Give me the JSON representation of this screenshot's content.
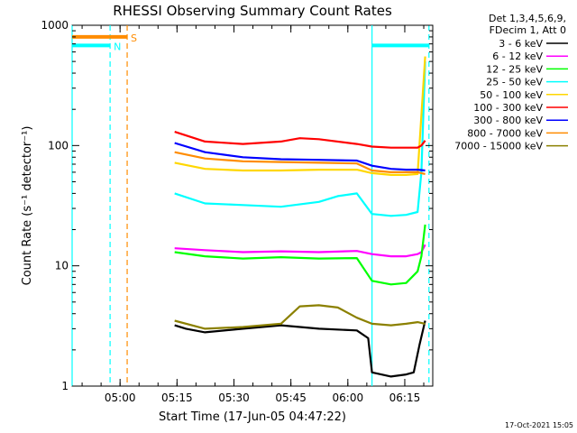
{
  "chart_data": {
    "type": "line",
    "title": "RHESSI Observing Summary Count Rates",
    "ylabel": "Count Rate (s⁻¹ detector⁻¹)",
    "xlabel": "Start Time (17-Jun-05 04:47:22)",
    "yscale": "log",
    "ylim": [
      1,
      1000
    ],
    "xlim_minutes": [
      0,
      95
    ],
    "y_ticks": [
      {
        "value": 1,
        "label": "1"
      },
      {
        "value": 10,
        "label": "10"
      },
      {
        "value": 100,
        "label": "100"
      },
      {
        "value": 1000,
        "label": "1000"
      }
    ],
    "x_ticks": [
      {
        "min": 12.63,
        "label": "05:00"
      },
      {
        "min": 27.63,
        "label": "05:15"
      },
      {
        "min": 42.63,
        "label": "05:30"
      },
      {
        "min": 57.63,
        "label": "05:45"
      },
      {
        "min": 72.63,
        "label": "06:00"
      },
      {
        "min": 87.63,
        "label": "06:15"
      }
    ],
    "legend_header": [
      "Det 1,3,4,5,6,9,",
      "FDecim 1, Att 0"
    ],
    "series": [
      {
        "name": "3 - 6 keV",
        "color": "#000000",
        "x": [
          27,
          30,
          35,
          45,
          55,
          65,
          75,
          78,
          79,
          84,
          88,
          90,
          91.5,
          93
        ],
        "y": [
          3.2,
          3.0,
          2.8,
          3.0,
          3.2,
          3.0,
          2.9,
          2.5,
          1.3,
          1.2,
          1.25,
          1.3,
          2.2,
          3.5
        ]
      },
      {
        "name": "6 - 12 keV",
        "color": "#ff00ff",
        "x": [
          27,
          35,
          45,
          55,
          65,
          75,
          79,
          84,
          88,
          91,
          92,
          93
        ],
        "y": [
          14,
          13.5,
          13,
          13.2,
          13,
          13.3,
          12.5,
          12,
          12,
          12.5,
          13,
          15
        ]
      },
      {
        "name": "12 - 25 keV",
        "color": "#00ff00",
        "x": [
          27,
          35,
          45,
          55,
          65,
          75,
          79,
          84,
          88,
          91,
          92,
          93
        ],
        "y": [
          13,
          12,
          11.5,
          11.8,
          11.5,
          11.6,
          7.5,
          7,
          7.2,
          9,
          12,
          22
        ]
      },
      {
        "name": "25 - 50 keV",
        "color": "#00ffff",
        "x": [
          27,
          35,
          45,
          55,
          65,
          70,
          75,
          79,
          84,
          88,
          91,
          92,
          93
        ],
        "y": [
          40,
          33,
          32,
          31,
          34,
          38,
          40,
          27,
          26,
          26.5,
          28,
          60,
          500
        ]
      },
      {
        "name": "50 - 100 keV",
        "color": "#ffd700",
        "x": [
          27,
          35,
          45,
          55,
          65,
          75,
          79,
          84,
          88,
          91,
          93
        ],
        "y": [
          72,
          64,
          62,
          62,
          63,
          63,
          59,
          57,
          57,
          58,
          550
        ]
      },
      {
        "name": "100 - 300 keV",
        "color": "#ff0000",
        "x": [
          27,
          35,
          45,
          55,
          60,
          65,
          75,
          79,
          84,
          88,
          91,
          92,
          93
        ],
        "y": [
          130,
          108,
          103,
          108,
          115,
          113,
          103,
          98,
          96,
          96,
          96,
          100,
          110
        ]
      },
      {
        "name": "300 - 800 keV",
        "color": "#0000ff",
        "x": [
          27,
          35,
          45,
          55,
          65,
          75,
          79,
          84,
          88,
          91,
          93
        ],
        "y": [
          105,
          88,
          80,
          77,
          76,
          75,
          68,
          64,
          63,
          63,
          62
        ]
      },
      {
        "name": "800 - 7000 keV",
        "color": "#ff8c00",
        "x": [
          27,
          35,
          45,
          55,
          65,
          75,
          79,
          84,
          88,
          91,
          93
        ],
        "y": [
          88,
          78,
          74,
          73,
          72,
          71,
          62,
          60,
          60,
          60,
          58
        ]
      },
      {
        "name": "7000 - 15000 keV",
        "color": "#8b8000",
        "x": [
          27,
          35,
          45,
          55,
          60,
          65,
          70,
          75,
          79,
          84,
          88,
          91,
          93
        ],
        "y": [
          3.5,
          3.0,
          3.1,
          3.3,
          4.6,
          4.7,
          4.5,
          3.7,
          3.3,
          3.2,
          3.3,
          3.4,
          3.3
        ]
      }
    ],
    "attenuator_lines": [
      {
        "label": "N",
        "color": "#00ffff",
        "x": [
          0,
          10
        ],
        "y": 680
      },
      {
        "label": "S",
        "color": "#ff8c00",
        "x": [
          0,
          14.5
        ],
        "y": 800
      },
      {
        "label": "",
        "color": "#00ffff",
        "x": [
          79,
          94
        ],
        "y": 680
      }
    ],
    "vlines": [
      {
        "color": "#00ffff",
        "x": 0,
        "style": "solid"
      },
      {
        "color": "#00ffff",
        "x": 10,
        "style": "dashed"
      },
      {
        "color": "#ff8c00",
        "x": 14.5,
        "style": "dashed"
      },
      {
        "color": "#00ffff",
        "x": 79,
        "style": "solid"
      },
      {
        "color": "#00ffff",
        "x": 94,
        "style": "dashed"
      }
    ],
    "timestamp": "17-Oct-2021 15:05"
  }
}
